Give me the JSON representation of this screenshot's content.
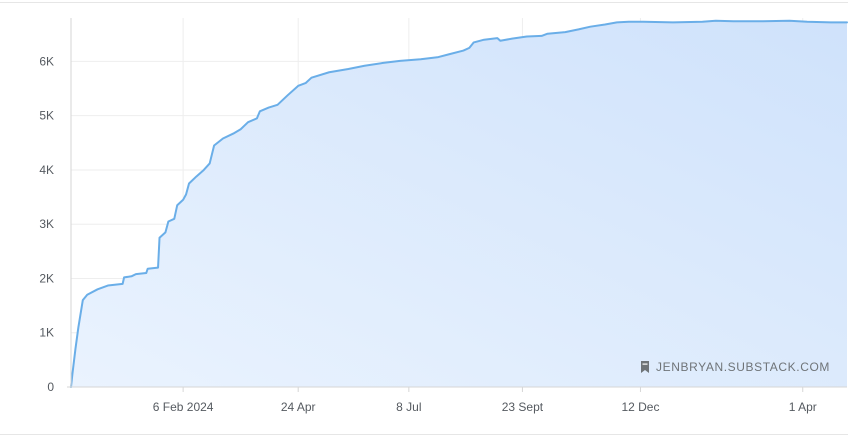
{
  "chart_data": {
    "type": "area",
    "title": "",
    "xlabel": "",
    "ylabel": "",
    "ylim": [
      0,
      6800
    ],
    "y_ticks": [
      {
        "value": 0,
        "label": "0"
      },
      {
        "value": 1000,
        "label": "1K"
      },
      {
        "value": 2000,
        "label": "2K"
      },
      {
        "value": 3000,
        "label": "3K"
      },
      {
        "value": 4000,
        "label": "4K"
      },
      {
        "value": 5000,
        "label": "5K"
      },
      {
        "value": 6000,
        "label": "6K"
      }
    ],
    "x_start": "2023-11-22",
    "x_end": "2025-05-01",
    "x_ticks": [
      {
        "date": "2024-02-06",
        "label": "6 Feb 2024"
      },
      {
        "date": "2024-04-24",
        "label": "24 Apr"
      },
      {
        "date": "2024-07-08",
        "label": "8 Jul"
      },
      {
        "date": "2024-09-23",
        "label": "23 Sept"
      },
      {
        "date": "2024-12-12",
        "label": "12 Dec"
      },
      {
        "date": "2025-04-01",
        "label": "1 Apr"
      }
    ],
    "grid": true,
    "colors": {
      "line": "#6aaee8",
      "fill_top": "#cfe2fb",
      "fill_bottom": "#eaf3fe",
      "grid": "#eeeeee",
      "axis": "#d6d6d6"
    },
    "series": [
      {
        "points": [
          [
            "2023-11-22",
            0
          ],
          [
            "2023-11-23",
            250
          ],
          [
            "2023-11-25",
            700
          ],
          [
            "2023-11-27",
            1100
          ],
          [
            "2023-11-30",
            1600
          ],
          [
            "2023-12-03",
            1700
          ],
          [
            "2023-12-10",
            1800
          ],
          [
            "2023-12-17",
            1870
          ],
          [
            "2023-12-27",
            1900
          ],
          [
            "2023-12-28",
            2020
          ],
          [
            "2024-01-02",
            2040
          ],
          [
            "2024-01-05",
            2080
          ],
          [
            "2024-01-12",
            2100
          ],
          [
            "2024-01-13",
            2180
          ],
          [
            "2024-01-20",
            2200
          ],
          [
            "2024-01-21",
            2750
          ],
          [
            "2024-01-25",
            2850
          ],
          [
            "2024-01-27",
            3050
          ],
          [
            "2024-01-31",
            3100
          ],
          [
            "2024-02-02",
            3350
          ],
          [
            "2024-02-06",
            3450
          ],
          [
            "2024-02-08",
            3550
          ],
          [
            "2024-02-10",
            3750
          ],
          [
            "2024-02-15",
            3880
          ],
          [
            "2024-02-20",
            4000
          ],
          [
            "2024-02-24",
            4120
          ],
          [
            "2024-02-27",
            4450
          ],
          [
            "2024-03-04",
            4580
          ],
          [
            "2024-03-11",
            4670
          ],
          [
            "2024-03-16",
            4750
          ],
          [
            "2024-03-21",
            4880
          ],
          [
            "2024-03-27",
            4950
          ],
          [
            "2024-03-29",
            5080
          ],
          [
            "2024-04-04",
            5150
          ],
          [
            "2024-04-10",
            5200
          ],
          [
            "2024-04-17",
            5380
          ],
          [
            "2024-04-24",
            5550
          ],
          [
            "2024-04-29",
            5600
          ],
          [
            "2024-05-03",
            5700
          ],
          [
            "2024-05-15",
            5800
          ],
          [
            "2024-05-28",
            5860
          ],
          [
            "2024-06-08",
            5920
          ],
          [
            "2024-06-20",
            5970
          ],
          [
            "2024-07-02",
            6010
          ],
          [
            "2024-07-16",
            6040
          ],
          [
            "2024-07-28",
            6080
          ],
          [
            "2024-08-04",
            6130
          ],
          [
            "2024-08-14",
            6200
          ],
          [
            "2024-08-18",
            6250
          ],
          [
            "2024-08-21",
            6350
          ],
          [
            "2024-08-28",
            6400
          ],
          [
            "2024-09-06",
            6430
          ],
          [
            "2024-09-08",
            6380
          ],
          [
            "2024-09-16",
            6420
          ],
          [
            "2024-09-26",
            6460
          ],
          [
            "2024-10-06",
            6470
          ],
          [
            "2024-10-10",
            6510
          ],
          [
            "2024-10-22",
            6540
          ],
          [
            "2024-10-31",
            6590
          ],
          [
            "2024-11-08",
            6640
          ],
          [
            "2024-11-18",
            6680
          ],
          [
            "2024-11-26",
            6720
          ],
          [
            "2024-12-04",
            6730
          ],
          [
            "2024-12-14",
            6730
          ],
          [
            "2025-01-03",
            6720
          ],
          [
            "2025-01-23",
            6730
          ],
          [
            "2025-02-01",
            6750
          ],
          [
            "2025-02-13",
            6740
          ],
          [
            "2025-03-05",
            6740
          ],
          [
            "2025-03-23",
            6750
          ],
          [
            "2025-04-04",
            6730
          ],
          [
            "2025-04-20",
            6720
          ],
          [
            "2025-05-01",
            6720
          ]
        ]
      }
    ]
  },
  "watermark": {
    "icon": "bookmark-icon",
    "text": "JENBRYAN.SUBSTACK.COM"
  }
}
